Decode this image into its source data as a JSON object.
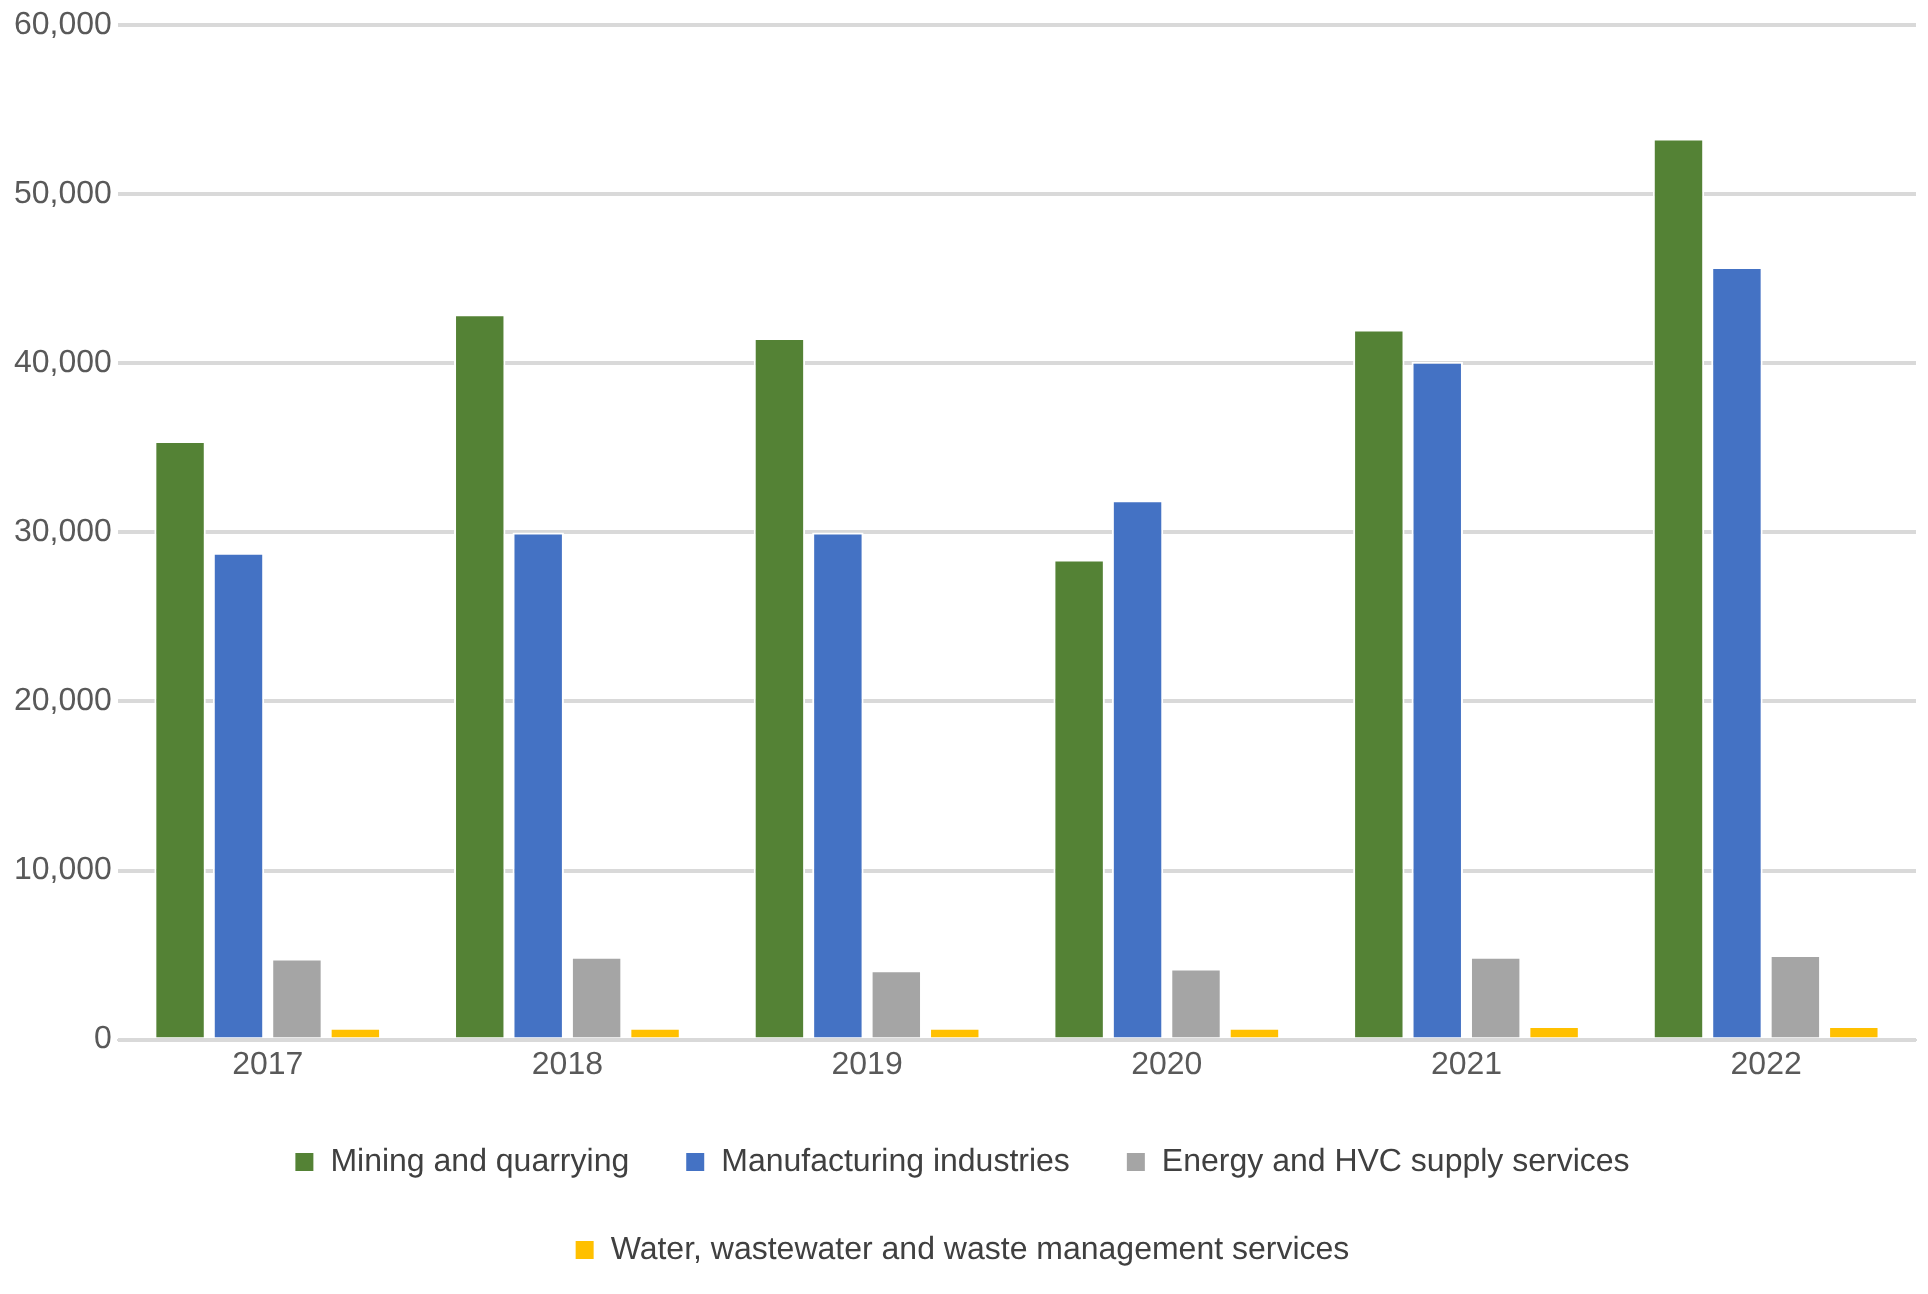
{
  "chart_data": {
    "type": "bar",
    "categories": [
      "2017",
      "2018",
      "2019",
      "2020",
      "2021",
      "2022"
    ],
    "series": [
      {
        "name": "Mining and quarrying",
        "color": "#548235",
        "values": [
          35400,
          42900,
          41500,
          28400,
          42000,
          53300
        ]
      },
      {
        "name": "Manufacturing industries",
        "color": "#4472c4",
        "values": [
          28800,
          30000,
          30000,
          31900,
          40100,
          45700
        ]
      },
      {
        "name": "Energy and HVC supply services",
        "color": "#a5a5a5",
        "values": [
          4800,
          4900,
          4100,
          4200,
          4900,
          5000
        ]
      },
      {
        "name": "Water, wastewater and waste management services",
        "color": "#ffc000",
        "values": [
          700,
          700,
          700,
          700,
          800,
          800
        ]
      }
    ],
    "ylim": [
      0,
      60000
    ],
    "yticks": [
      {
        "value": 0,
        "label": "0"
      },
      {
        "value": 10000,
        "label": "10,000"
      },
      {
        "value": 20000,
        "label": "20,000"
      },
      {
        "value": 30000,
        "label": "30,000"
      },
      {
        "value": 40000,
        "label": "40,000"
      },
      {
        "value": 50000,
        "label": "50,000"
      },
      {
        "value": 60000,
        "label": "60,000"
      }
    ],
    "grid": "y",
    "legend": "bottom"
  }
}
